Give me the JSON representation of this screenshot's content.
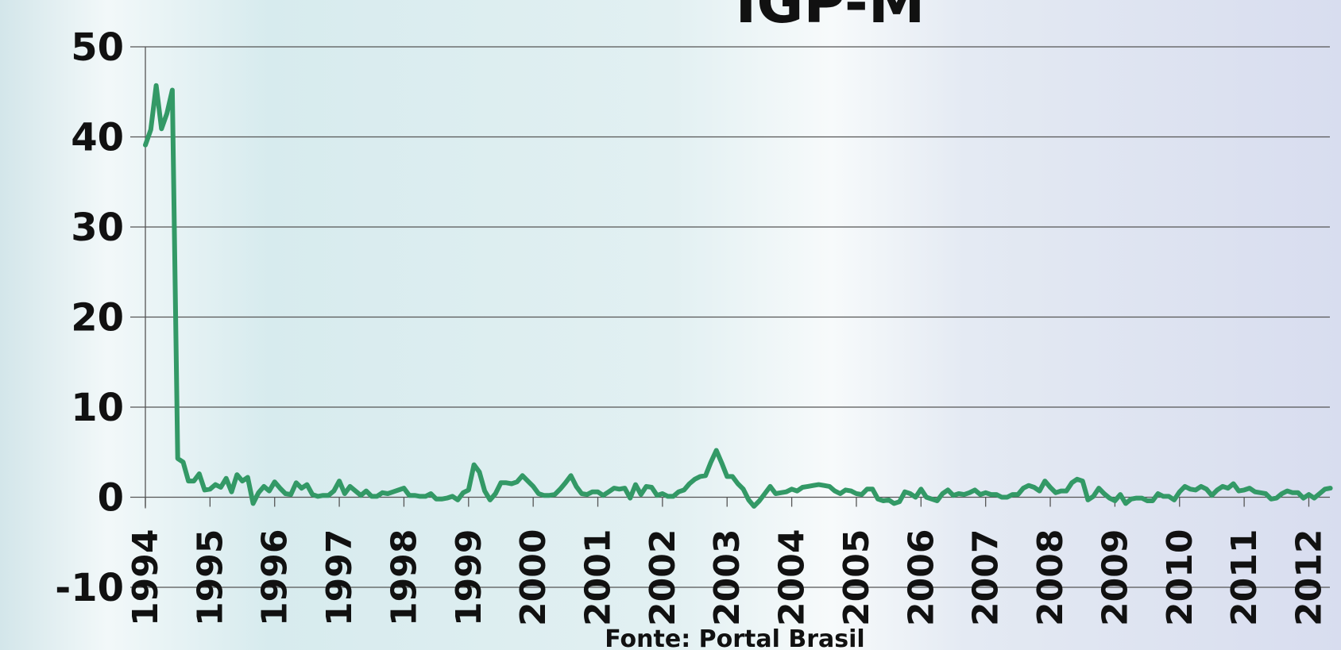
{
  "chart_data": {
    "type": "line",
    "title": "IGP-M",
    "source": "Fonte: Portal Brasil",
    "categories": [
      "1994",
      null,
      null,
      null,
      null,
      null,
      null,
      null,
      null,
      null,
      null,
      null,
      "1995",
      null,
      null,
      null,
      null,
      null,
      null,
      null,
      null,
      null,
      null,
      null,
      "1996",
      null,
      null,
      null,
      null,
      null,
      null,
      null,
      null,
      null,
      null,
      null,
      "1997",
      null,
      null,
      null,
      null,
      null,
      null,
      null,
      null,
      null,
      null,
      null,
      "1998",
      null,
      null,
      null,
      null,
      null,
      null,
      null,
      null,
      null,
      null,
      null,
      "1999",
      null,
      null,
      null,
      null,
      null,
      null,
      null,
      null,
      null,
      null,
      null,
      "2000",
      null,
      null,
      null,
      null,
      null,
      null,
      null,
      null,
      null,
      null,
      null,
      "2001",
      null,
      null,
      null,
      null,
      null,
      null,
      null,
      null,
      null,
      null,
      null,
      "2002",
      null,
      null,
      null,
      null,
      null,
      null,
      null,
      null,
      null,
      null,
      null,
      "2003",
      null,
      null,
      null,
      null,
      null,
      null,
      null,
      null,
      null,
      null,
      null,
      "2004",
      null,
      null,
      null,
      null,
      null,
      null,
      null,
      null,
      null,
      null,
      null,
      "2005",
      null,
      null,
      null,
      null,
      null,
      null,
      null,
      null,
      null,
      null,
      null,
      "2006",
      null,
      null,
      null,
      null,
      null,
      null,
      null,
      null,
      null,
      null,
      null,
      "2007",
      null,
      null,
      null,
      null,
      null,
      null,
      null,
      null,
      null,
      null,
      null,
      "2008",
      null,
      null,
      null,
      null,
      null,
      null,
      null,
      null,
      null,
      null,
      null,
      "2009",
      null,
      null,
      null,
      null,
      null,
      null,
      null,
      null,
      null,
      null,
      null,
      "2010",
      null,
      null,
      null,
      null,
      null,
      null,
      null,
      null,
      null,
      null,
      null,
      "2011",
      null,
      null,
      null,
      null,
      null,
      null,
      null,
      null,
      null,
      null,
      null,
      "2012",
      null,
      null,
      null,
      null
    ],
    "values": [
      39.1,
      40.8,
      45.7,
      40.9,
      42.6,
      45.2,
      4.3,
      3.9,
      1.8,
      1.8,
      2.6,
      0.8,
      0.9,
      1.4,
      1.1,
      2.1,
      0.6,
      2.5,
      1.8,
      2.2,
      -0.7,
      0.5,
      1.2,
      0.7,
      1.7,
      1.0,
      0.4,
      0.3,
      1.6,
      1.0,
      1.4,
      0.3,
      0.1,
      0.2,
      0.2,
      0.7,
      1.8,
      0.4,
      1.2,
      0.7,
      0.2,
      0.7,
      0.1,
      0.1,
      0.5,
      0.4,
      0.6,
      0.8,
      1.0,
      0.2,
      0.2,
      0.1,
      0.1,
      0.4,
      -0.2,
      -0.2,
      -0.1,
      0.1,
      -0.3,
      0.5,
      0.8,
      3.6,
      2.8,
      0.7,
      -0.3,
      0.4,
      1.6,
      1.6,
      1.5,
      1.7,
      2.4,
      1.8,
      1.2,
      0.4,
      0.2,
      0.2,
      0.3,
      0.9,
      1.6,
      2.4,
      1.2,
      0.4,
      0.3,
      0.6,
      0.6,
      0.2,
      0.6,
      1.0,
      0.9,
      1.0,
      -0.1,
      1.4,
      0.3,
      1.2,
      1.1,
      0.2,
      0.4,
      0.1,
      0.1,
      0.6,
      0.8,
      1.5,
      2.0,
      2.3,
      2.4,
      3.9,
      5.2,
      3.8,
      2.3,
      2.3,
      1.5,
      0.9,
      -0.3,
      -1.0,
      -0.4,
      0.4,
      1.2,
      0.4,
      0.5,
      0.6,
      0.9,
      0.7,
      1.1,
      1.2,
      1.3,
      1.4,
      1.3,
      1.2,
      0.7,
      0.4,
      0.8,
      0.7,
      0.4,
      0.3,
      0.9,
      0.9,
      -0.2,
      -0.4,
      -0.3,
      -0.7,
      -0.5,
      0.6,
      0.4,
      0.0,
      0.9,
      0.0,
      -0.2,
      -0.4,
      0.4,
      0.8,
      0.2,
      0.4,
      0.3,
      0.5,
      0.8,
      0.3,
      0.5,
      0.3,
      0.3,
      0.0,
      0.0,
      0.3,
      0.3,
      1.0,
      1.3,
      1.1,
      0.7,
      1.8,
      1.1,
      0.5,
      0.7,
      0.7,
      1.6,
      2.0,
      1.8,
      -0.3,
      0.1,
      1.0,
      0.4,
      -0.1,
      -0.4,
      0.3,
      -0.7,
      -0.2,
      -0.1,
      -0.1,
      -0.4,
      -0.4,
      0.4,
      0.1,
      0.1,
      -0.3,
      0.6,
      1.2,
      0.9,
      0.8,
      1.2,
      0.9,
      0.2,
      0.8,
      1.2,
      1.0,
      1.5,
      0.7,
      0.8,
      1.0,
      0.6,
      0.5,
      0.4,
      -0.2,
      -0.1,
      0.4,
      0.7,
      0.5,
      0.5,
      -0.1,
      0.3,
      -0.1,
      0.4,
      0.9,
      1.0
    ],
    "color": "#339966",
    "ylim": [
      -10,
      50
    ],
    "yticks": [
      -10,
      0,
      10,
      20,
      30,
      40,
      50
    ],
    "grid": true
  }
}
